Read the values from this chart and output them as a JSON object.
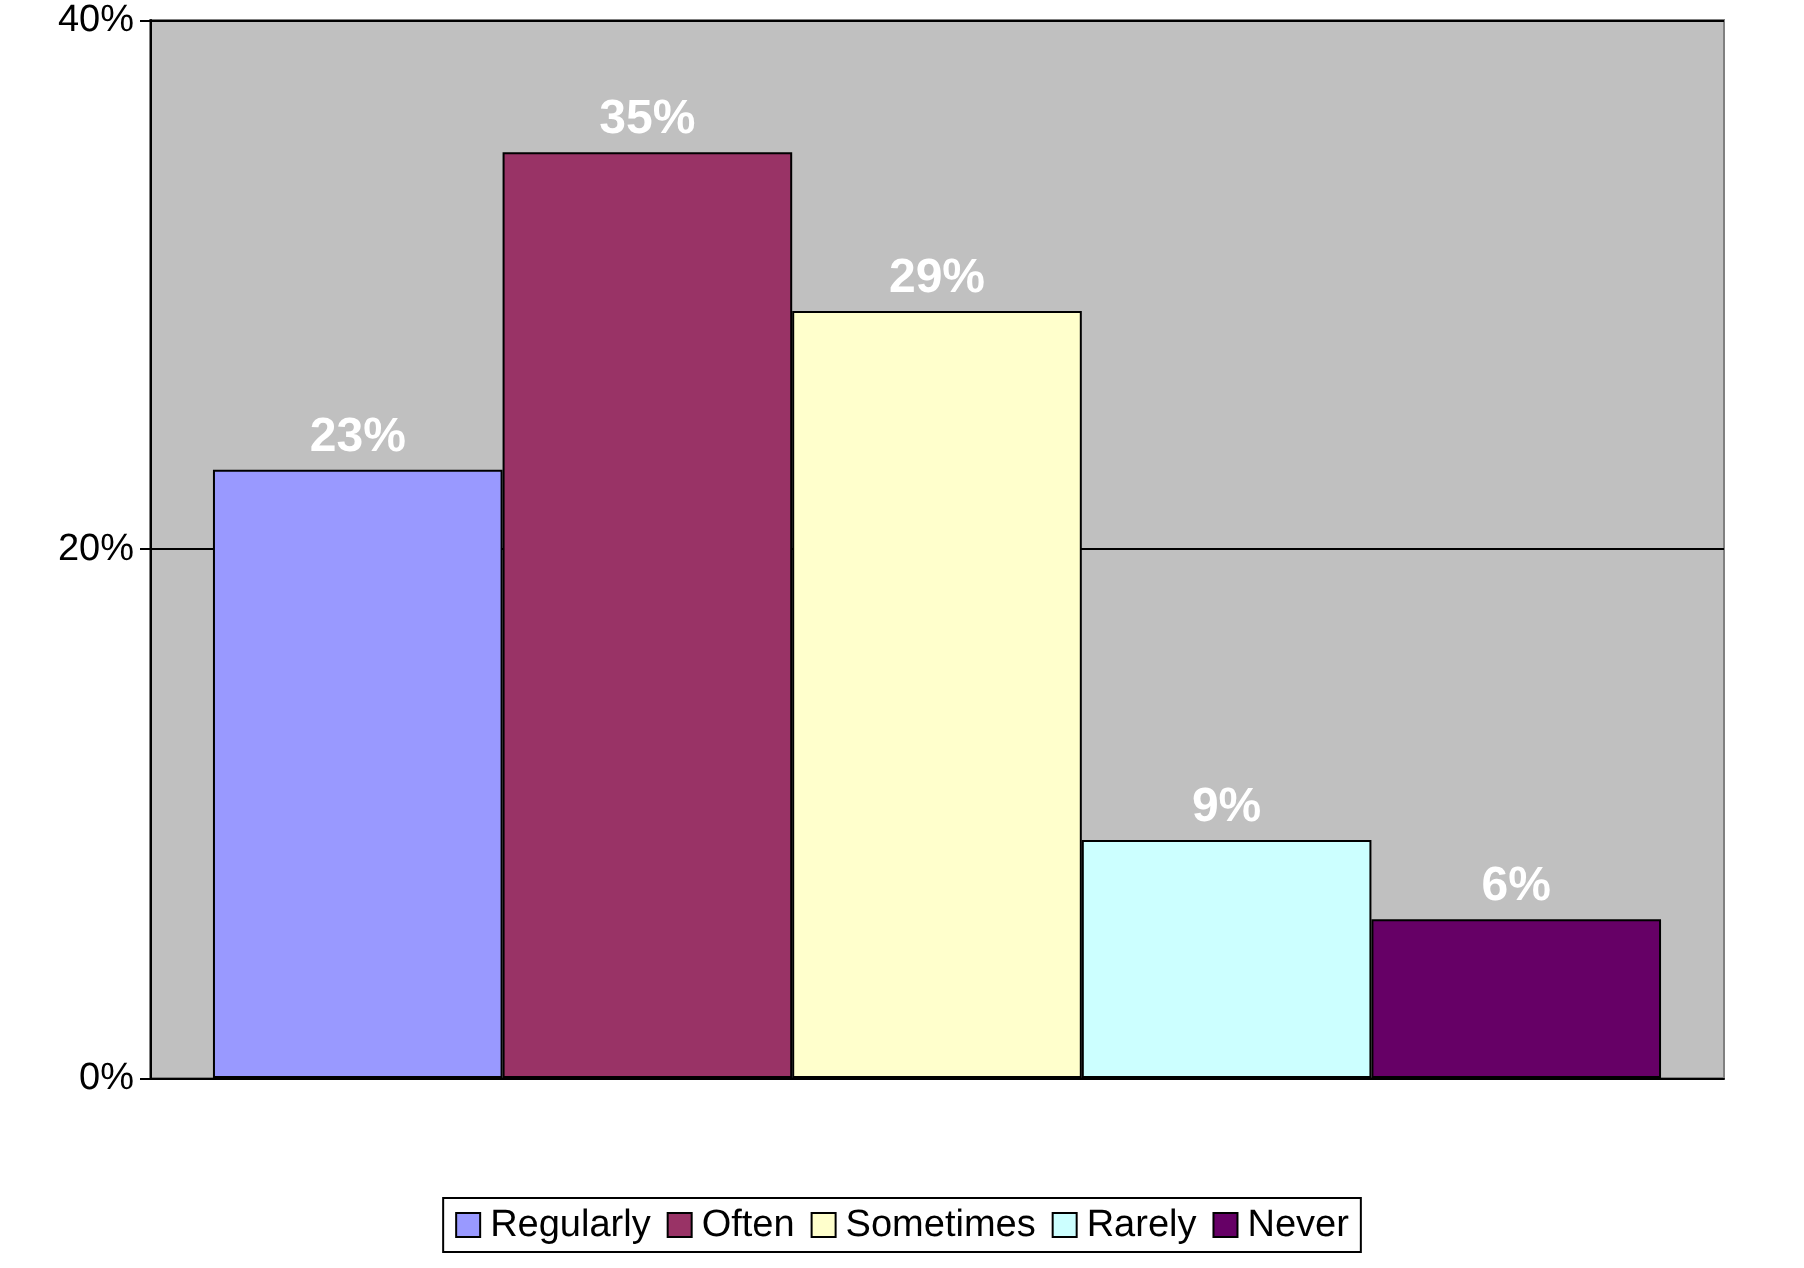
{
  "chart_data": {
    "type": "bar",
    "categories": [
      null
    ],
    "series": [
      {
        "name": "Regularly",
        "color": "#9999ff",
        "values": [
          23
        ],
        "value_labels": [
          "23%"
        ]
      },
      {
        "name": "Often",
        "color": "#993366",
        "values": [
          35
        ],
        "value_labels": [
          "35%"
        ]
      },
      {
        "name": "Sometimes",
        "color": "#ffffcc",
        "values": [
          29
        ],
        "value_labels": [
          "29%"
        ]
      },
      {
        "name": "Rarely",
        "color": "#ccffff",
        "values": [
          9
        ],
        "value_labels": [
          "9%"
        ]
      },
      {
        "name": "Never",
        "color": "#660066",
        "values": [
          6
        ],
        "value_labels": [
          "6%"
        ]
      }
    ],
    "ylim": [
      0,
      40
    ],
    "yticks": [
      {
        "value": 0,
        "label": "0%"
      },
      {
        "value": 20,
        "label": "20%"
      },
      {
        "value": 40,
        "label": "40%"
      }
    ],
    "grid": "y",
    "legend": "bottom"
  }
}
